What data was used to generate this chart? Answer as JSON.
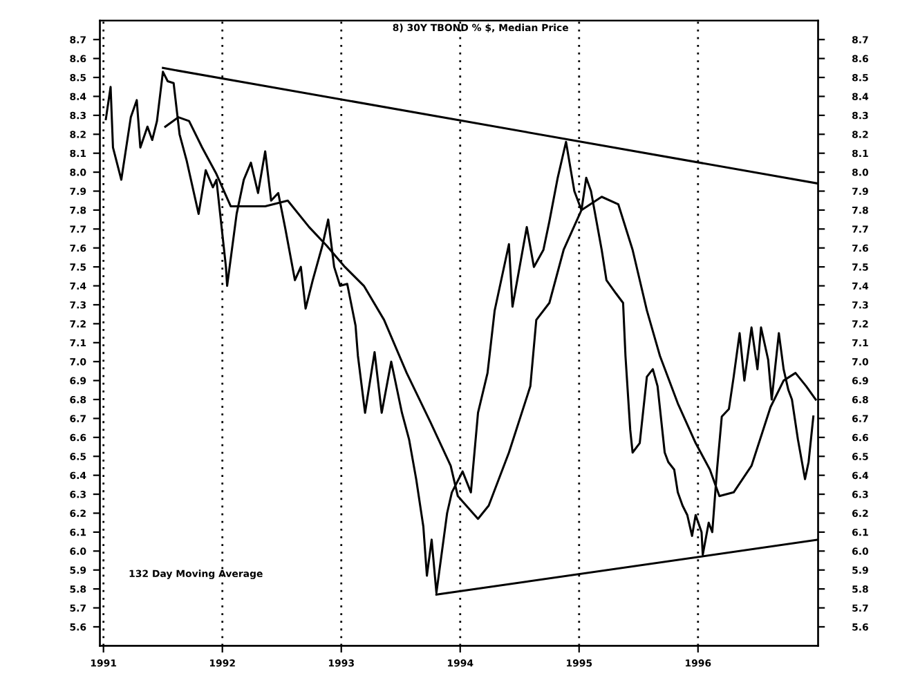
{
  "chart_data": {
    "type": "line",
    "title": "8) 30Y TBOND % $, Median Price",
    "series": [
      {
        "color": "#000000",
        "x": [
          1991.02,
          1991.06,
          1991.08,
          1991.15,
          1991.23,
          1991.28,
          1991.31,
          1991.37,
          1991.41,
          1991.45,
          1991.5,
          1991.54,
          1991.59,
          1991.64,
          1991.7,
          1991.8,
          1991.86,
          1991.92,
          1991.95,
          1992.03,
          1992.04,
          1992.12,
          1992.18,
          1992.24,
          1992.3,
          1992.36,
          1992.41,
          1992.47,
          1992.53,
          1992.61,
          1992.66,
          1992.7,
          1992.76,
          1992.84,
          1992.89,
          1992.94,
          1992.99,
          1993.05,
          1993.12,
          1993.14,
          1993.2,
          1993.28,
          1993.34,
          1993.42,
          1993.51,
          1993.57,
          1993.63,
          1993.69,
          1993.72,
          1993.76,
          1993.8,
          1993.89,
          1993.93,
          1994.02,
          1994.09,
          1994.15,
          1994.23,
          1994.29,
          1994.41,
          1994.44,
          1994.56,
          1994.62,
          1994.7,
          1994.75,
          1994.82,
          1994.89,
          1994.96,
          1995.02,
          1995.06,
          1995.1,
          1995.19,
          1995.23,
          1995.31,
          1995.37,
          1995.39,
          1995.43,
          1995.45,
          1995.51,
          1995.57,
          1995.62,
          1995.66,
          1995.72,
          1995.75,
          1995.8,
          1995.83,
          1995.87,
          1995.91,
          1995.95,
          1995.98,
          1996.03,
          1996.04,
          1996.09,
          1996.12,
          1996.16,
          1996.2,
          1996.26,
          1996.3,
          1996.35,
          1996.39,
          1996.45,
          1996.5,
          1996.53,
          1996.59,
          1996.62,
          1996.68,
          1996.72,
          1996.76,
          1996.79,
          1996.84,
          1996.9,
          1996.93,
          1996.97
        ],
        "values": [
          8.28,
          8.45,
          8.13,
          7.96,
          8.29,
          8.38,
          8.13,
          8.24,
          8.17,
          8.27,
          8.53,
          8.48,
          8.47,
          8.2,
          8.06,
          7.78,
          8.01,
          7.92,
          7.96,
          7.5,
          7.4,
          7.78,
          7.96,
          8.05,
          7.89,
          8.11,
          7.85,
          7.89,
          7.7,
          7.43,
          7.5,
          7.28,
          7.43,
          7.61,
          7.75,
          7.5,
          7.4,
          7.41,
          7.19,
          7.03,
          6.73,
          7.05,
          6.73,
          7.0,
          6.73,
          6.59,
          6.38,
          6.13,
          5.87,
          6.06,
          5.78,
          6.2,
          6.31,
          6.42,
          6.31,
          6.73,
          6.94,
          7.27,
          7.62,
          7.29,
          7.71,
          7.5,
          7.59,
          7.74,
          7.97,
          8.16,
          7.9,
          7.8,
          7.97,
          7.9,
          7.59,
          7.43,
          7.36,
          7.31,
          7.03,
          6.64,
          6.52,
          6.57,
          6.92,
          6.96,
          6.87,
          6.52,
          6.47,
          6.43,
          6.31,
          6.24,
          6.19,
          6.08,
          6.19,
          6.1,
          5.98,
          6.15,
          6.1,
          6.43,
          6.71,
          6.75,
          6.92,
          7.15,
          6.9,
          7.18,
          6.96,
          7.18,
          7.01,
          6.8,
          7.15,
          6.96,
          6.85,
          6.8,
          6.59,
          6.38,
          6.47,
          6.71
        ]
      },
      {
        "color": "#000000",
        "x": [
          1991.52,
          1991.63,
          1991.72,
          1991.83,
          1991.95,
          1992.07,
          1992.16,
          1992.36,
          1992.55,
          1992.73,
          1992.88,
          1993.03,
          1993.19,
          1993.36,
          1993.55,
          1993.75,
          1993.92,
          1993.98,
          1994.15,
          1994.24,
          1994.41,
          1994.59,
          1994.64,
          1994.75,
          1994.87,
          1995.02,
          1995.19,
          1995.33,
          1995.45,
          1995.57,
          1995.68,
          1995.83,
          1995.98,
          1996.1,
          1996.18,
          1996.3,
          1996.45,
          1996.61,
          1996.72,
          1996.82,
          1996.91,
          1996.99
        ],
        "values": [
          8.24,
          8.29,
          8.27,
          8.13,
          7.99,
          7.82,
          7.82,
          7.82,
          7.85,
          7.71,
          7.61,
          7.5,
          7.4,
          7.22,
          6.94,
          6.68,
          6.45,
          6.29,
          6.17,
          6.24,
          6.52,
          6.87,
          7.22,
          7.31,
          7.59,
          7.8,
          7.87,
          7.83,
          7.59,
          7.27,
          7.03,
          6.78,
          6.57,
          6.43,
          6.29,
          6.31,
          6.45,
          6.76,
          6.9,
          6.94,
          6.87,
          6.8
        ]
      },
      {
        "color": "#000000",
        "x": [
          1991.5,
          1997.01
        ],
        "values": [
          8.55,
          7.94
        ]
      },
      {
        "color": "#000000",
        "x": [
          1993.8,
          1997.01
        ],
        "values": [
          5.77,
          6.06
        ]
      }
    ],
    "annotations": [
      "132 Day Moving Average"
    ],
    "xlim": [
      1990.97,
      1997.01
    ],
    "xticks": [
      1991,
      1992,
      1993,
      1994,
      1995,
      1996
    ],
    "ylim": [
      5.5,
      8.8
    ],
    "yticks": [
      5.6,
      5.7,
      5.8,
      5.9,
      {
        "value": 6,
        "label": "6.0"
      },
      6.1,
      6.2,
      6.3,
      6.4,
      6.5,
      6.6,
      6.7,
      6.8,
      6.9,
      {
        "value": 7,
        "label": "7.0"
      },
      7.1,
      7.2,
      7.3,
      7.4,
      7.5,
      7.6,
      7.7,
      7.8,
      7.9,
      {
        "value": 8,
        "label": "8.0"
      },
      8.1,
      8.2,
      8.3,
      8.4,
      8.5,
      8.6,
      8.7
    ],
    "y2lim": [
      5.5,
      8.8
    ],
    "y2ticks": [
      5.6,
      5.7,
      5.8,
      5.9,
      {
        "value": 6,
        "label": "6.0"
      },
      6.1,
      6.2,
      6.3,
      6.4,
      6.5,
      6.6,
      6.7,
      6.8,
      6.9,
      {
        "value": 7,
        "label": "7.0"
      },
      7.1,
      7.2,
      7.3,
      7.4,
      7.5,
      7.6,
      7.7,
      7.8,
      7.9,
      {
        "value": 8,
        "label": "8.0"
      },
      8.1,
      8.2,
      8.3,
      8.4,
      8.5,
      8.6,
      8.7
    ],
    "grid": "x",
    "line_style": "solid",
    "legend": false
  }
}
